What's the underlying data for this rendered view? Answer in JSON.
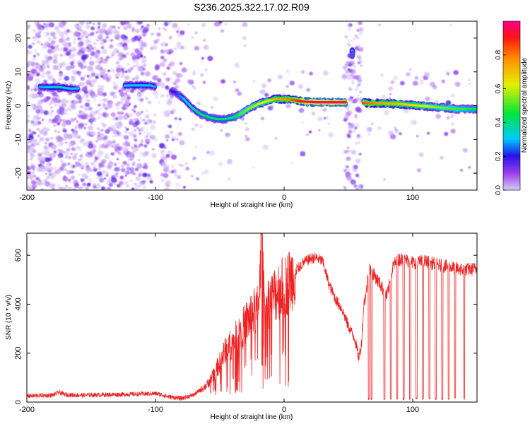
{
  "title": "S236.2025.322.17.02.R09",
  "chart_data": [
    {
      "type": "heatmap",
      "name": "spectrogram",
      "xlabel": "Height of straight line (km)",
      "ylabel": "Frequency (Hz)",
      "xlim": [
        -200,
        150
      ],
      "ylim": [
        -25,
        25
      ],
      "xticks": [
        -200,
        -100,
        0,
        100
      ],
      "xtick_labels": [
        "-200",
        "-100",
        "0",
        "100"
      ],
      "yticks": [
        -20,
        -10,
        0,
        10,
        20
      ],
      "ytick_labels": [
        "-20",
        "-10",
        "0",
        "10",
        "20"
      ],
      "colorbar": {
        "label": "Normalized spectral amplitude",
        "range": [
          0,
          1
        ],
        "ticks": [
          0.0,
          0.2,
          0.4,
          0.6,
          0.8
        ],
        "tick_labels": [
          "0.0",
          "0.2",
          "0.4",
          "0.6",
          "0.8"
        ]
      },
      "ridge": {
        "x": [
          -185,
          -175,
          -165,
          -120,
          -112,
          -104,
          -85,
          -78,
          -72,
          -65,
          -58,
          -52,
          -46,
          -40,
          -34,
          -28,
          -20,
          -12,
          -5,
          5,
          15,
          25,
          35,
          45,
          50,
          62,
          75,
          90,
          105,
          120,
          135,
          150
        ],
        "y": [
          5.5,
          5.5,
          5.0,
          6.0,
          6.0,
          6.0,
          4.0,
          2.0,
          -0.5,
          -2.5,
          -3.5,
          -4.0,
          -4.0,
          -3.5,
          -2.5,
          -1.0,
          0.5,
          1.5,
          2.0,
          1.8,
          1.2,
          1.0,
          1.0,
          1.0,
          1.0,
          0.8,
          0.7,
          0.5,
          0.0,
          -0.5,
          -1.0,
          -1.0
        ],
        "amplitude": [
          0.3,
          0.35,
          0.3,
          0.3,
          0.32,
          0.3,
          0.2,
          0.3,
          0.35,
          0.4,
          0.42,
          0.4,
          0.4,
          0.42,
          0.5,
          0.55,
          0.6,
          0.65,
          0.75,
          0.8,
          0.95,
          1.0,
          1.0,
          1.0,
          0.9,
          0.85,
          0.75,
          0.7,
          0.65,
          0.55,
          0.5,
          0.45
        ]
      },
      "features": [
        {
          "x": 53,
          "y": 16,
          "amplitude": 0.35
        },
        {
          "x": 53,
          "y": 15,
          "amplitude": 0.25
        }
      ]
    },
    {
      "type": "line",
      "name": "snr",
      "xlabel": "Height of straight line (km)",
      "ylabel": "SNR (10 * v/v)",
      "xlim": [
        -200,
        150
      ],
      "ylim": [
        0,
        690
      ],
      "xticks": [
        -200,
        -100,
        0,
        100
      ],
      "xtick_labels": [
        "-200",
        "-100",
        "0",
        "100"
      ],
      "yticks": [
        0,
        200,
        400,
        600
      ],
      "ytick_labels": [
        "0",
        "200",
        "400",
        "600"
      ],
      "color": "#ee2222",
      "series": [
        {
          "name": "SNR",
          "x": [
            -200,
            -190,
            -180,
            -175,
            -170,
            -160,
            -140,
            -120,
            -100,
            -95,
            -90,
            -80,
            -70,
            -60,
            -55,
            -50,
            -45,
            -40,
            -35,
            -30,
            -25,
            -20,
            -18,
            -15,
            -10,
            -5,
            0,
            5,
            10,
            15,
            20,
            25,
            30,
            35,
            40,
            45,
            50,
            55,
            58,
            60,
            62,
            64,
            66,
            67,
            70,
            75,
            80,
            85,
            90,
            95,
            100,
            110,
            120,
            130,
            140,
            150
          ],
          "y": [
            25,
            27,
            28,
            40,
            30,
            28,
            30,
            32,
            35,
            30,
            22,
            15,
            30,
            70,
            110,
            160,
            220,
            240,
            280,
            320,
            360,
            380,
            660,
            390,
            420,
            460,
            470,
            500,
            540,
            570,
            585,
            590,
            575,
            480,
            420,
            380,
            310,
            260,
            180,
            230,
            400,
            450,
            550,
            540,
            520,
            480,
            430,
            560,
            585,
            580,
            570,
            575,
            560,
            550,
            540,
            545
          ]
        }
      ],
      "dropouts": [
        66,
        68,
        78,
        83,
        88,
        93,
        98,
        103,
        108,
        113,
        118,
        123,
        128,
        133,
        140
      ]
    }
  ]
}
